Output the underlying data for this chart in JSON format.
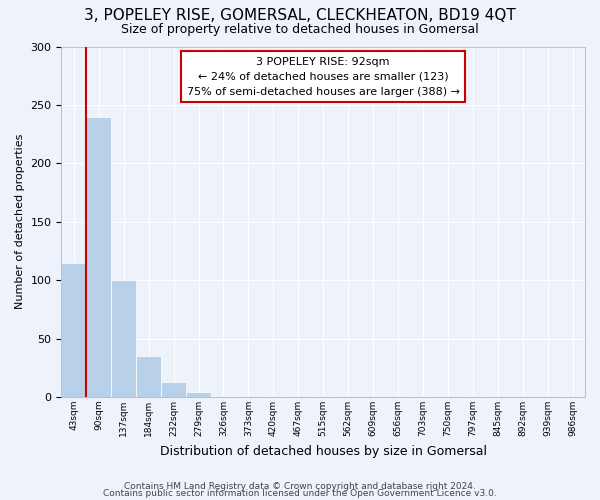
{
  "title": "3, POPELEY RISE, GOMERSAL, CLECKHEATON, BD19 4QT",
  "subtitle": "Size of property relative to detached houses in Gomersal",
  "xlabel": "Distribution of detached houses by size in Gomersal",
  "ylabel": "Number of detached properties",
  "footer_line1": "Contains HM Land Registry data © Crown copyright and database right 2024.",
  "footer_line2": "Contains public sector information licensed under the Open Government Licence v3.0.",
  "annotation_line1": "3 POPELEY RISE: 92sqm",
  "annotation_line2": "← 24% of detached houses are smaller (123)",
  "annotation_line3": "75% of semi-detached houses are larger (388) →",
  "marker_bin_index": 1,
  "bar_color": "#b8d0e8",
  "bar_edge_color": "#b8d0e8",
  "marker_color": "#cc0000",
  "background_color": "#eef2fa",
  "plot_bg_color": "#eef2fa",
  "ylim": [
    0,
    300
  ],
  "title_fontsize": 11,
  "subtitle_fontsize": 9,
  "categories": [
    "43sqm",
    "90sqm",
    "137sqm",
    "184sqm",
    "232sqm",
    "279sqm",
    "326sqm",
    "373sqm",
    "420sqm",
    "467sqm",
    "515sqm",
    "562sqm",
    "609sqm",
    "656sqm",
    "703sqm",
    "750sqm",
    "797sqm",
    "845sqm",
    "892sqm",
    "939sqm",
    "986sqm"
  ],
  "values": [
    115,
    240,
    100,
    35,
    13,
    4,
    1,
    0,
    1,
    0,
    1,
    0,
    0,
    0,
    1,
    0,
    1,
    0,
    0,
    0,
    1
  ]
}
